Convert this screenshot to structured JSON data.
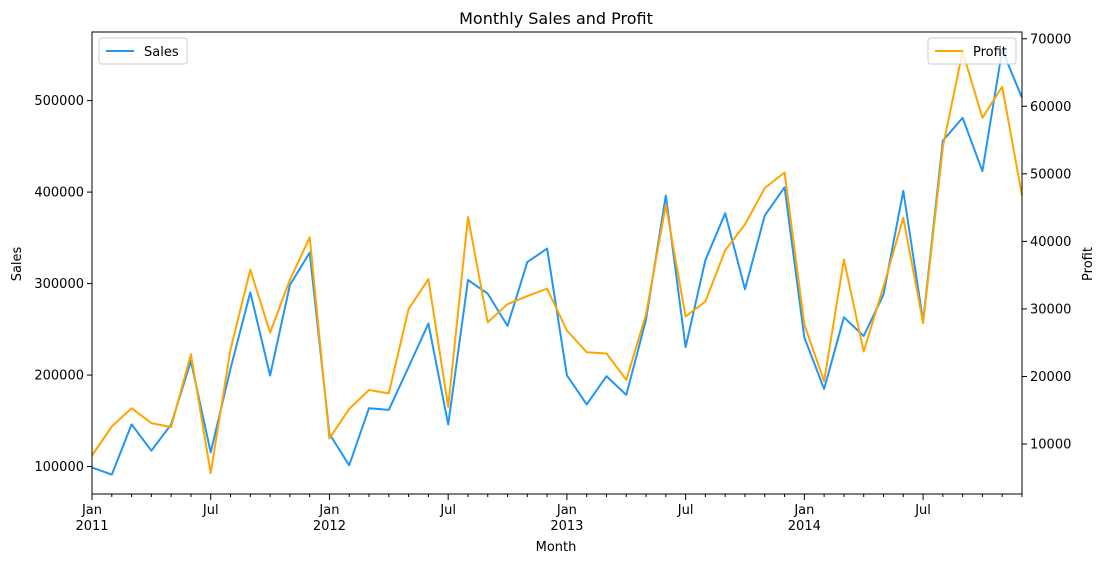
{
  "chart_data": {
    "type": "line",
    "title": "Monthly Sales and Profit",
    "xlabel": "Month",
    "ylabel": "Sales",
    "y2label": "Profit",
    "x_start": "2011-01",
    "x_end": "2014-12",
    "ylim": [
      70000,
      575000
    ],
    "y2lim": [
      2600,
      71000
    ],
    "y_ticks": [
      100000,
      200000,
      300000,
      400000,
      500000
    ],
    "y2_ticks": [
      10000,
      20000,
      30000,
      40000,
      50000,
      60000,
      70000
    ],
    "x_major_ticks": [
      {
        "month": "2011-01",
        "label": "Jan",
        "year": "2011"
      },
      {
        "month": "2011-07",
        "label": "Jul",
        "year": ""
      },
      {
        "month": "2012-01",
        "label": "Jan",
        "year": "2012"
      },
      {
        "month": "2012-07",
        "label": "Jul",
        "year": ""
      },
      {
        "month": "2013-01",
        "label": "Jan",
        "year": "2013"
      },
      {
        "month": "2013-07",
        "label": "Jul",
        "year": ""
      },
      {
        "month": "2014-01",
        "label": "Jan",
        "year": "2014"
      },
      {
        "month": "2014-07",
        "label": "Jul",
        "year": ""
      }
    ],
    "legend": {
      "sales_placement": "top-left",
      "profit_placement": "top-right"
    },
    "grid": false,
    "series": [
      {
        "name": "Sales",
        "axis": "left",
        "color": "#2196f3",
        "values": [
          98900,
          91200,
          146100,
          117300,
          146000,
          215400,
          115500,
          207000,
          290500,
          199500,
          298500,
          333900,
          135700,
          101400,
          163800,
          161900,
          208800,
          256300,
          146100,
          303900,
          289100,
          253700,
          323500,
          338200,
          199700,
          167900,
          198800,
          178300,
          260600,
          396300,
          230600,
          325700,
          376800,
          293800,
          374500,
          405200,
          241300,
          184800,
          263100,
          242700,
          288000,
          401400,
          258700,
          456300,
          481100,
          422900,
          555400,
          503100
        ]
      },
      {
        "name": "Profit",
        "axis": "right",
        "color": "#ffa500",
        "values": [
          8300,
          12600,
          15300,
          13100,
          12500,
          23300,
          5700,
          24000,
          35800,
          26500,
          34300,
          40600,
          10800,
          15200,
          18000,
          17500,
          30000,
          34400,
          15500,
          43600,
          28000,
          30700,
          31900,
          33000,
          26800,
          23600,
          23400,
          19500,
          29200,
          45400,
          28900,
          31100,
          38700,
          42500,
          47900,
          50200,
          27700,
          19300,
          37300,
          23700,
          33300,
          43500,
          27900,
          54000,
          68100,
          58300,
          62900,
          46800
        ]
      }
    ]
  }
}
